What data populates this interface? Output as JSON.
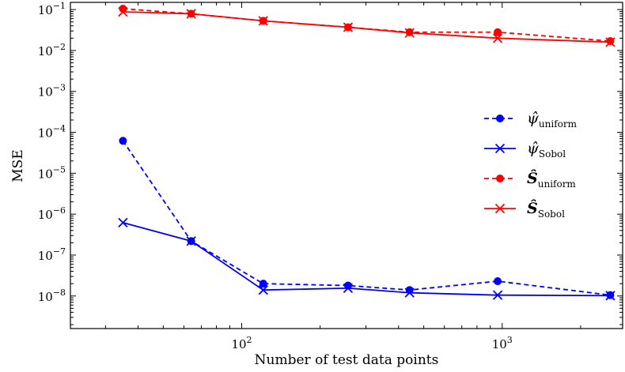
{
  "chart_data": {
    "type": "line",
    "xlabel": "Number of test data points",
    "ylabel": "MSE",
    "xscale": "log",
    "yscale": "log",
    "xlim": [
      22,
      2900
    ],
    "ylim": [
      1.6e-09,
      0.15
    ],
    "x_ticks": [
      {
        "value": 100,
        "base": "10",
        "exp": "2"
      },
      {
        "value": 1000,
        "base": "10",
        "exp": "3"
      }
    ],
    "y_ticks": [
      {
        "value": 1e-08,
        "base": "10",
        "exp": "−8"
      },
      {
        "value": 1e-07,
        "base": "10",
        "exp": "−7"
      },
      {
        "value": 1e-06,
        "base": "10",
        "exp": "−6"
      },
      {
        "value": 1e-05,
        "base": "10",
        "exp": "−5"
      },
      {
        "value": 0.0001,
        "base": "10",
        "exp": "−4"
      },
      {
        "value": 0.001,
        "base": "10",
        "exp": "−3"
      },
      {
        "value": 0.01,
        "base": "10",
        "exp": "−2"
      },
      {
        "value": 0.1,
        "base": "10",
        "exp": "−1"
      }
    ],
    "grid": false,
    "legend_position": "right",
    "x": [
      35,
      64,
      121,
      256,
      441,
      961,
      2601
    ],
    "series": [
      {
        "symbol": "ψ̂",
        "subscript": "uniform",
        "color": "#0000ff",
        "linestyle": "dashed",
        "marker": "circle",
        "values": [
          6.2e-05,
          2.2e-07,
          2e-08,
          1.8e-08,
          1.4e-08,
          2.3e-08,
          1.05e-08
        ]
      },
      {
        "symbol": "ψ̂",
        "subscript": "Sobol",
        "color": "#0000ff",
        "linestyle": "solid",
        "marker": "x",
        "values": [
          6.2e-07,
          2.2e-07,
          1.4e-08,
          1.55e-08,
          1.2e-08,
          1.05e-08,
          1.02e-08
        ]
      },
      {
        "symbol": "Ŝ",
        "subscript": "uniform",
        "color": "#ff0000",
        "linestyle": "dashed",
        "marker": "circle",
        "values": [
          0.105,
          0.079,
          0.053,
          0.037,
          0.028,
          0.028,
          0.017
        ]
      },
      {
        "symbol": "Ŝ",
        "subscript": "Sobol",
        "color": "#ff0000",
        "linestyle": "solid",
        "marker": "x",
        "values": [
          0.088,
          0.079,
          0.053,
          0.037,
          0.027,
          0.02,
          0.016
        ]
      }
    ]
  }
}
